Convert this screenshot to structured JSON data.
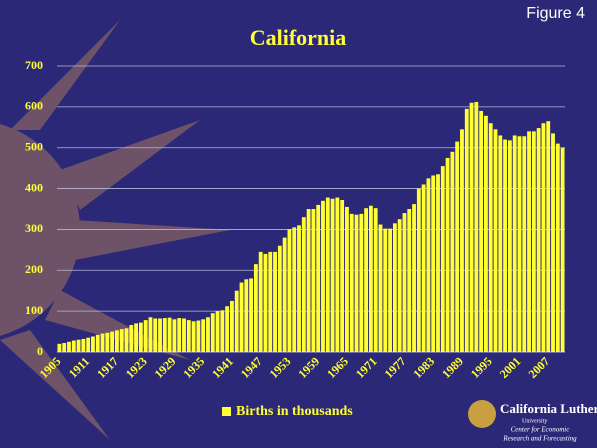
{
  "figure_label": "Figure 4",
  "logo": {
    "name": "California Lutheran",
    "sub": "University",
    "line1": "Center for Economic",
    "line2": "Research and Forecasting"
  },
  "chart_data": {
    "type": "bar",
    "title": "California",
    "categories": [
      "1905",
      null,
      null,
      null,
      null,
      null,
      "1911",
      null,
      null,
      null,
      null,
      null,
      "1917",
      null,
      null,
      null,
      null,
      null,
      "1923",
      null,
      null,
      null,
      null,
      null,
      "1929",
      null,
      null,
      null,
      null,
      null,
      "1935",
      null,
      null,
      null,
      null,
      null,
      "1941",
      null,
      null,
      null,
      null,
      null,
      "1947",
      null,
      null,
      null,
      null,
      null,
      "1953",
      null,
      null,
      null,
      null,
      null,
      "1959",
      null,
      null,
      null,
      null,
      null,
      "1965",
      null,
      null,
      null,
      null,
      null,
      "1971",
      null,
      null,
      null,
      null,
      null,
      "1977",
      null,
      null,
      null,
      null,
      null,
      "1983",
      null,
      null,
      null,
      null,
      null,
      "1989",
      null,
      null,
      null,
      null,
      null,
      "1995",
      null,
      null,
      null,
      null,
      null,
      "2001",
      null,
      null,
      null,
      null,
      null,
      "2007",
      null,
      null,
      null
    ],
    "series": [
      {
        "name": "Births in thousands",
        "color": "#ffff33",
        "values": [
          20,
          22,
          25,
          28,
          30,
          32,
          35,
          38,
          42,
          45,
          47,
          50,
          53,
          56,
          58,
          66,
          70,
          72,
          78,
          85,
          82,
          82,
          83,
          84,
          80,
          83,
          82,
          78,
          75,
          77,
          80,
          85,
          95,
          100,
          102,
          112,
          125,
          150,
          170,
          178,
          180,
          215,
          245,
          240,
          245,
          245,
          260,
          280,
          300,
          305,
          310,
          330,
          350,
          350,
          360,
          370,
          378,
          375,
          378,
          372,
          355,
          338,
          336,
          338,
          352,
          358,
          352,
          312,
          302,
          302,
          315,
          325,
          340,
          350,
          362,
          400,
          410,
          425,
          432,
          435,
          455,
          475,
          490,
          515,
          545,
          595,
          610,
          612,
          590,
          578,
          560,
          545,
          530,
          520,
          518,
          530,
          528,
          528,
          540,
          540,
          548,
          560,
          565,
          535,
          510,
          500
        ]
      }
    ],
    "ylim": [
      0,
      700
    ],
    "yticks": [
      0,
      100,
      200,
      300,
      400,
      500,
      600,
      700
    ],
    "grid": true
  }
}
